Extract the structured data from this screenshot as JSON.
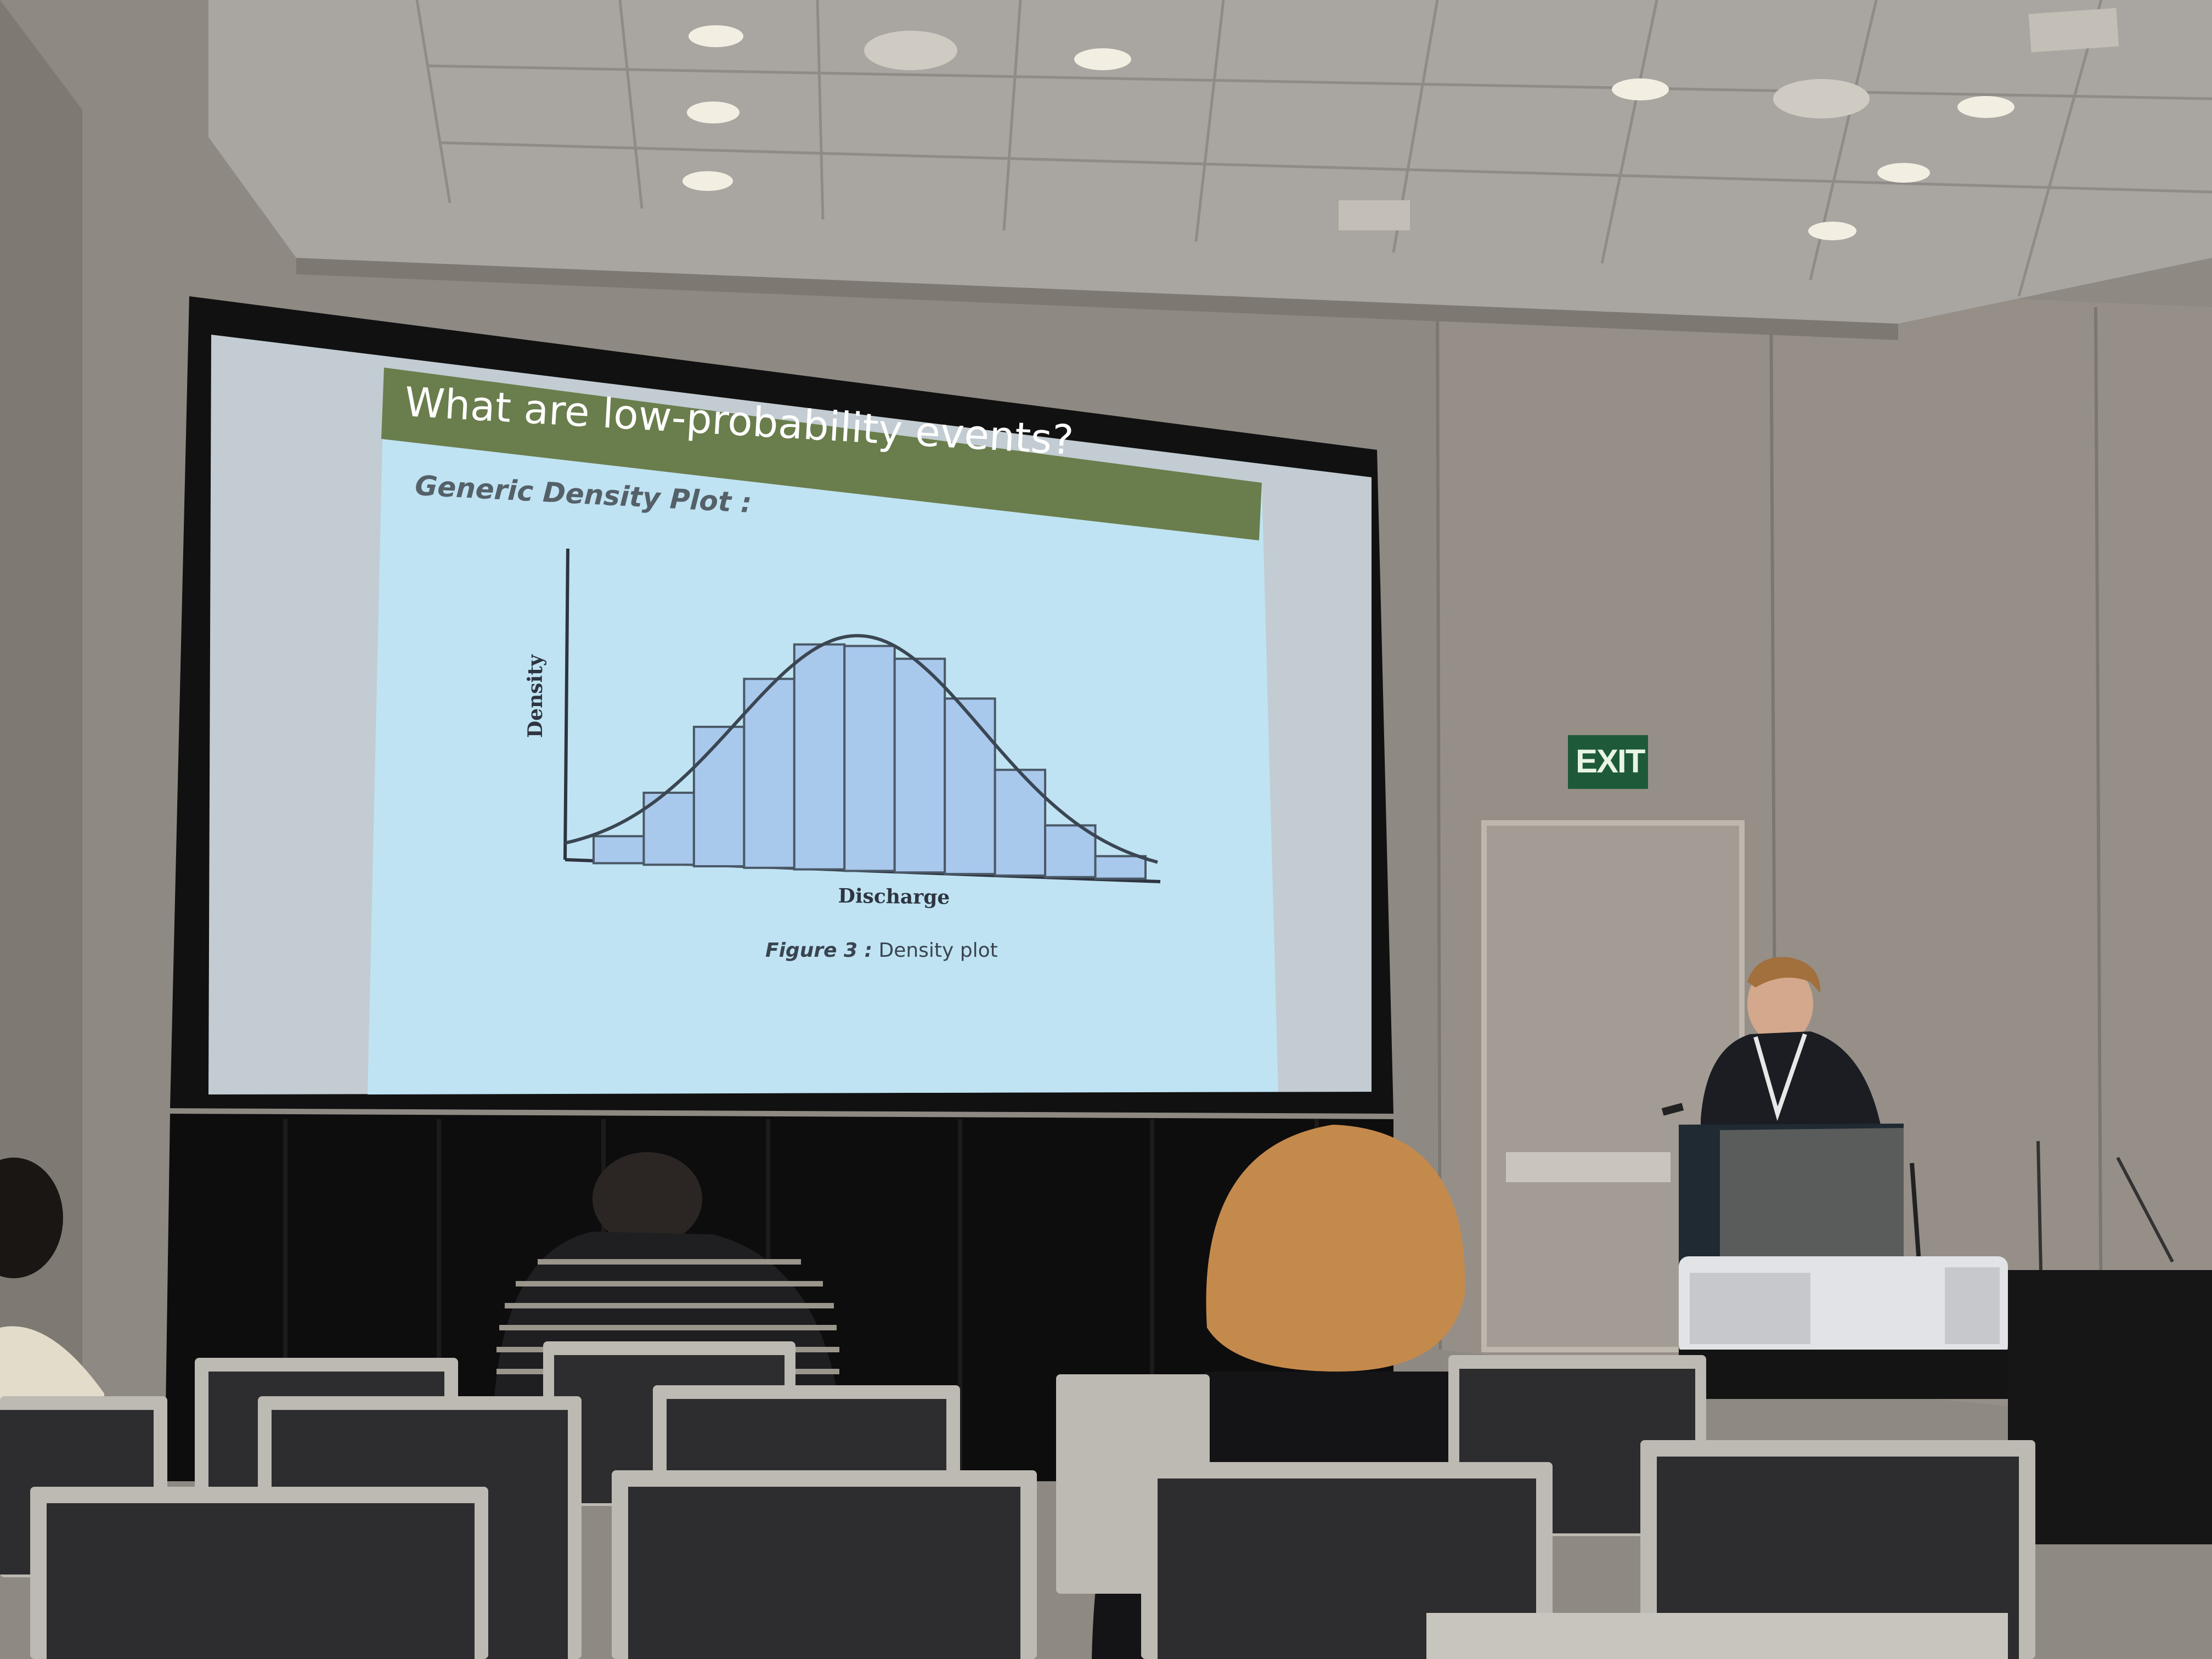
{
  "slide": {
    "title": "What are low-probability events?",
    "subtitle": "Generic Density Plot :",
    "chart_data": {
      "type": "bar",
      "overlay": "density-curve",
      "xlabel": "Discharge",
      "ylabel": "Density",
      "values": [
        0.12,
        0.32,
        0.62,
        0.84,
        1.0,
        1.0,
        0.95,
        0.78,
        0.47,
        0.23,
        0.1
      ],
      "grid": false,
      "bar_color": "#a8c8ec",
      "curve_color": "#3a4652"
    },
    "caption_label": "Figure 3 :",
    "caption_text": "Density plot",
    "title_bar_color": "#6a7d4c",
    "background_color": "#bfe3f2"
  },
  "room": {
    "exit_sign": "EXIT"
  }
}
